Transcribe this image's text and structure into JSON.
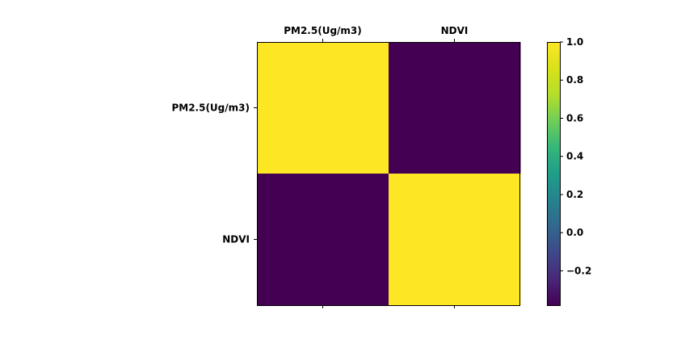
{
  "chart_data": {
    "type": "heatmap",
    "categories": [
      "PM2.5(Ug/m3)",
      "NDVI"
    ],
    "x_tick_position": "top",
    "matrix": [
      [
        1.0,
        -0.38
      ],
      [
        -0.38,
        1.0
      ]
    ],
    "colormap": "viridis",
    "colorbar": {
      "range": [
        -0.38,
        1.0
      ],
      "ticks": [
        1.0,
        0.8,
        0.6,
        0.4,
        0.2,
        0.0,
        -0.2
      ],
      "tick_labels": [
        "1.0",
        "0.8",
        "0.6",
        "0.4",
        "0.2",
        "0.0",
        "−0.2"
      ]
    },
    "colors": {
      "high": "#fde725",
      "low": "#440154"
    }
  }
}
